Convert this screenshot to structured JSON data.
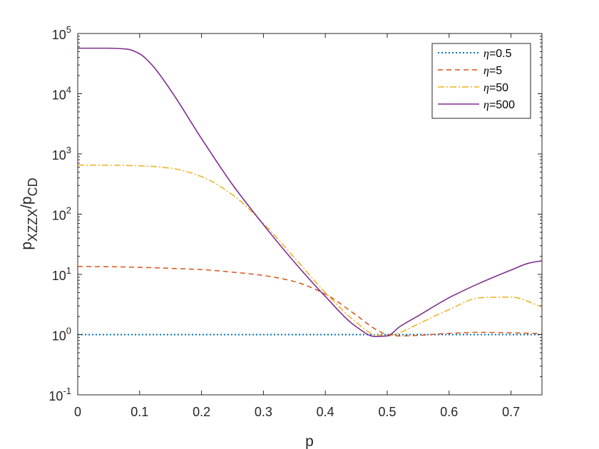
{
  "chart_data": {
    "type": "line",
    "xlabel": "p",
    "ylabel": {
      "base": "p",
      "sub": "XZZX",
      "sep": "/p",
      "sub2": "CD"
    },
    "xlim": [
      0,
      0.75
    ],
    "ylim_log10": [
      -1,
      5
    ],
    "yscale": "log",
    "grid": false,
    "legend_position": "top-right",
    "x_ticks": [
      {
        "value": 0,
        "label": "0"
      },
      {
        "value": 0.1,
        "label": "0.1"
      },
      {
        "value": 0.2,
        "label": "0.2"
      },
      {
        "value": 0.3,
        "label": "0.3"
      },
      {
        "value": 0.4,
        "label": "0.4"
      },
      {
        "value": 0.5,
        "label": "0.5"
      },
      {
        "value": 0.6,
        "label": "0.6"
      },
      {
        "value": 0.7,
        "label": "0.7"
      }
    ],
    "y_ticks": [
      {
        "exp": -1,
        "base": "10",
        "sup": "-1"
      },
      {
        "exp": 0,
        "base": "10",
        "sup": "0"
      },
      {
        "exp": 1,
        "base": "10",
        "sup": "1"
      },
      {
        "exp": 2,
        "base": "10",
        "sup": "2"
      },
      {
        "exp": 3,
        "base": "10",
        "sup": "3"
      },
      {
        "exp": 4,
        "base": "10",
        "sup": "4"
      },
      {
        "exp": 5,
        "base": "10",
        "sup": "5"
      }
    ],
    "series": [
      {
        "name": "η=0.5",
        "symbol": "η",
        "label_rest": "=0.5",
        "color": "#0072BD",
        "dash": "2,3",
        "width": 2,
        "x": [
          0,
          0.75
        ],
        "y": [
          1.0,
          1.0
        ]
      },
      {
        "name": "η=5",
        "symbol": "η",
        "label_rest": "=5",
        "color": "#D95319",
        "dash": "7,5",
        "width": 1.5,
        "x": [
          0,
          0.05,
          0.1,
          0.15,
          0.2,
          0.25,
          0.3,
          0.35,
          0.4,
          0.45,
          0.48,
          0.5,
          0.52,
          0.55,
          0.6,
          0.65,
          0.7,
          0.75
        ],
        "y": [
          13.5,
          13.4,
          13.1,
          12.6,
          12.0,
          10.9,
          9.6,
          7.6,
          4.7,
          2.1,
          1.25,
          1.0,
          0.95,
          0.97,
          1.05,
          1.09,
          1.07,
          1.04
        ]
      },
      {
        "name": "η=50",
        "symbol": "η",
        "label_rest": "=50",
        "color": "#EDB120",
        "dash": "9,3,2,3",
        "width": 1.5,
        "x": [
          0,
          0.05,
          0.1,
          0.15,
          0.2,
          0.25,
          0.3,
          0.35,
          0.4,
          0.45,
          0.48,
          0.5,
          0.52,
          0.55,
          0.6,
          0.65,
          0.7,
          0.75
        ],
        "y": [
          650,
          650,
          635,
          580,
          420,
          210,
          70,
          19,
          5.0,
          1.6,
          1.0,
          0.95,
          1.08,
          1.5,
          2.6,
          4.1,
          4.2,
          2.9
        ]
      },
      {
        "name": "η=500",
        "symbol": "η",
        "label_rest": "=500",
        "color": "#7E2F8E",
        "dash": "",
        "width": 1.6,
        "x": [
          0,
          0.05,
          0.08,
          0.1,
          0.12,
          0.15,
          0.2,
          0.25,
          0.3,
          0.35,
          0.4,
          0.45,
          0.48,
          0.5,
          0.52,
          0.55,
          0.6,
          0.65,
          0.7,
          0.73,
          0.75
        ],
        "y": [
          57000,
          57000,
          55000,
          46000,
          30000,
          11500,
          1800,
          310,
          67,
          16,
          4.3,
          1.35,
          0.93,
          0.95,
          1.35,
          2.05,
          4.1,
          7.2,
          11.8,
          15.5,
          16.8
        ]
      }
    ]
  }
}
